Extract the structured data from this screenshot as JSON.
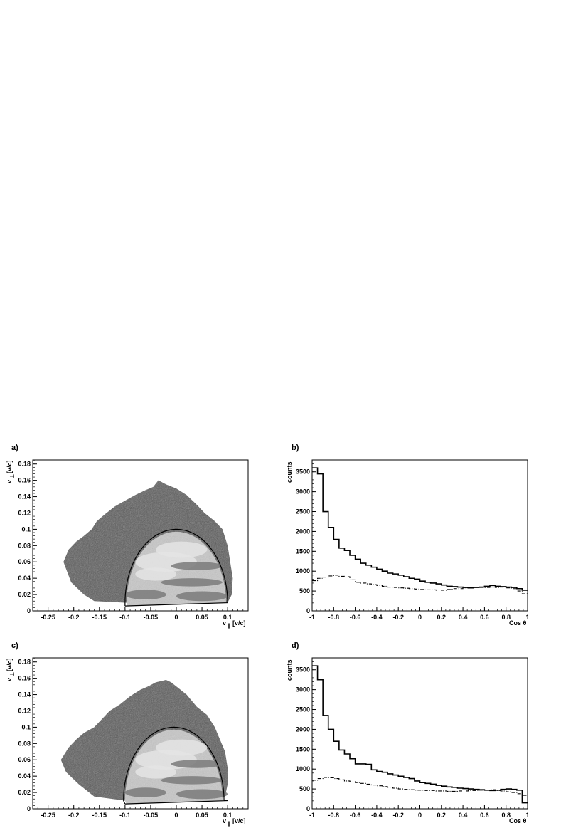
{
  "colors": {
    "frame": "#000000",
    "outer_region": "#5a5a5a",
    "inner_region": "#c8c8c8",
    "inner_bright": "#e4e4e4",
    "inner_dark": "#7a7a7a"
  },
  "chart_data": [
    {
      "panel": "a)",
      "type": "heatmap",
      "xlabel_main": "v",
      "xlabel_sub": "∥",
      "xlabel_unit": "[v/c]",
      "ylabel_main": "v",
      "ylabel_sub": "⊥",
      "ylabel_unit": "[v/c]",
      "xlim": [
        -0.28,
        0.14
      ],
      "ylim": [
        0,
        0.185
      ],
      "xticks": [
        "-0.25",
        "-0.2",
        "-0.15",
        "-0.1",
        "-0.05",
        "0",
        "0.05",
        "0.1"
      ],
      "xtick_values": [
        -0.25,
        -0.2,
        -0.15,
        -0.1,
        -0.05,
        0,
        0.05,
        0.1
      ],
      "yticks": [
        "0",
        "0.02",
        "0.04",
        "0.06",
        "0.08",
        "0.1",
        "0.12",
        "0.14",
        "0.16",
        "0.18"
      ],
      "ytick_values": [
        0,
        0.02,
        0.04,
        0.06,
        0.08,
        0.1,
        0.12,
        0.14,
        0.16,
        0.18
      ],
      "outer_boundary": [
        [
          -0.18,
          0.02
        ],
        [
          -0.205,
          0.035
        ],
        [
          -0.22,
          0.06
        ],
        [
          -0.21,
          0.075
        ],
        [
          -0.195,
          0.085
        ],
        [
          -0.18,
          0.092
        ],
        [
          -0.165,
          0.1
        ],
        [
          -0.155,
          0.11
        ],
        [
          -0.14,
          0.118
        ],
        [
          -0.12,
          0.128
        ],
        [
          -0.1,
          0.135
        ],
        [
          -0.08,
          0.142
        ],
        [
          -0.06,
          0.148
        ],
        [
          -0.045,
          0.152
        ],
        [
          -0.035,
          0.16
        ],
        [
          -0.02,
          0.155
        ],
        [
          0.0,
          0.15
        ],
        [
          0.02,
          0.142
        ],
        [
          0.04,
          0.13
        ],
        [
          0.055,
          0.12
        ],
        [
          0.075,
          0.11
        ],
        [
          0.09,
          0.1
        ],
        [
          0.1,
          0.08
        ],
        [
          0.105,
          0.06
        ],
        [
          0.11,
          0.04
        ],
        [
          0.108,
          0.02
        ],
        [
          0.1,
          0.01
        ],
        [
          0.0,
          0.008
        ],
        [
          -0.1,
          0.01
        ],
        [
          -0.16,
          0.012
        ]
      ],
      "gate_contour": {
        "arc_center": [
          0.0,
          0.01
        ],
        "arc_radius_x": 0.1,
        "arc_radius_y": 0.09,
        "bottom_left": [
          -0.1,
          0.006
        ],
        "bottom_right": [
          0.1,
          0.01
        ]
      }
    },
    {
      "panel": "b)",
      "type": "line",
      "ylabel": "counts",
      "xlabel": "Cos θ",
      "xlim": [
        -1,
        1
      ],
      "ylim": [
        0,
        3800
      ],
      "xticks": [
        "-1",
        "-0.8",
        "-0.6",
        "-0.4",
        "-0.2",
        "0",
        "0.2",
        "0.4",
        "0.6",
        "0.8",
        "1"
      ],
      "xtick_values": [
        -1,
        -0.8,
        -0.6,
        -0.4,
        -0.2,
        0,
        0.2,
        0.4,
        0.6,
        0.8,
        1
      ],
      "yticks": [
        "0",
        "500",
        "1000",
        "1500",
        "2000",
        "2500",
        "3000",
        "3500"
      ],
      "ytick_values": [
        0,
        500,
        1000,
        1500,
        2000,
        2500,
        3000,
        3500
      ],
      "bin_edges_start": -1,
      "bin_width": 0.05,
      "series": [
        {
          "style": "solid",
          "values": [
            3600,
            3450,
            2500,
            2100,
            1800,
            1580,
            1520,
            1400,
            1300,
            1200,
            1150,
            1100,
            1050,
            1000,
            950,
            930,
            900,
            860,
            820,
            800,
            750,
            720,
            700,
            680,
            650,
            620,
            610,
            600,
            590,
            580,
            590,
            600,
            620,
            640,
            620,
            610,
            600,
            590,
            560,
            520
          ]
        },
        {
          "style": "dash-dot",
          "values": [
            760,
            820,
            850,
            880,
            900,
            870,
            860,
            780,
            720,
            700,
            680,
            660,
            640,
            620,
            600,
            590,
            580,
            570,
            560,
            550,
            540,
            530,
            530,
            520,
            520,
            540,
            560,
            560,
            580,
            580,
            600,
            590,
            590,
            600,
            590,
            600,
            580,
            560,
            500,
            430
          ]
        }
      ]
    },
    {
      "panel": "c)",
      "type": "heatmap",
      "xlabel_main": "v",
      "xlabel_sub": "∥",
      "xlabel_unit": "[v/c]",
      "ylabel_main": "v",
      "ylabel_sub": "⊥",
      "ylabel_unit": "[v/c]",
      "xlim": [
        -0.28,
        0.14
      ],
      "ylim": [
        0,
        0.185
      ],
      "xticks": [
        "-0.25",
        "-0.2",
        "-0.15",
        "-0.1",
        "-0.05",
        "0",
        "0.05",
        "0.1"
      ],
      "xtick_values": [
        -0.25,
        -0.2,
        -0.15,
        -0.1,
        -0.05,
        0,
        0.05,
        0.1
      ],
      "yticks": [
        "0",
        "0.02",
        "0.04",
        "0.06",
        "0.08",
        "0.1",
        "0.12",
        "0.14",
        "0.16",
        "0.18"
      ],
      "ytick_values": [
        0,
        0.02,
        0.04,
        0.06,
        0.08,
        0.1,
        0.12,
        0.14,
        0.16,
        0.18
      ],
      "outer_boundary": [
        [
          -0.19,
          0.03
        ],
        [
          -0.215,
          0.045
        ],
        [
          -0.225,
          0.06
        ],
        [
          -0.21,
          0.075
        ],
        [
          -0.195,
          0.085
        ],
        [
          -0.18,
          0.093
        ],
        [
          -0.16,
          0.1
        ],
        [
          -0.145,
          0.11
        ],
        [
          -0.13,
          0.12
        ],
        [
          -0.11,
          0.128
        ],
        [
          -0.09,
          0.138
        ],
        [
          -0.07,
          0.146
        ],
        [
          -0.055,
          0.15
        ],
        [
          -0.04,
          0.155
        ],
        [
          -0.02,
          0.158
        ],
        [
          -0.01,
          0.155
        ],
        [
          0.0,
          0.15
        ],
        [
          0.02,
          0.14
        ],
        [
          0.04,
          0.125
        ],
        [
          0.06,
          0.115
        ],
        [
          0.075,
          0.1
        ],
        [
          0.085,
          0.085
        ],
        [
          0.095,
          0.07
        ],
        [
          0.1,
          0.05
        ],
        [
          0.1,
          0.03
        ],
        [
          0.095,
          0.015
        ],
        [
          0.08,
          0.01
        ],
        [
          0.0,
          0.008
        ],
        [
          -0.1,
          0.01
        ],
        [
          -0.16,
          0.015
        ]
      ],
      "gate_contour": {
        "arc_center": [
          -0.005,
          0.01
        ],
        "arc_radius_x": 0.098,
        "arc_radius_y": 0.09,
        "bottom_left": [
          -0.1,
          0.006
        ],
        "bottom_right": [
          0.1,
          0.01
        ]
      }
    },
    {
      "panel": "d)",
      "type": "line",
      "ylabel": "counts",
      "xlabel": "Cos θ",
      "xlim": [
        -1,
        1
      ],
      "ylim": [
        0,
        3800
      ],
      "xticks": [
        "-1",
        "-0.8",
        "-0.6",
        "-0.4",
        "-0.2",
        "0",
        "0.2",
        "0.4",
        "0.6",
        "0.8",
        "1"
      ],
      "xtick_values": [
        -1,
        -0.8,
        -0.6,
        -0.4,
        -0.2,
        0,
        0.2,
        0.4,
        0.6,
        0.8,
        1
      ],
      "yticks": [
        "0",
        "500",
        "1000",
        "1500",
        "2000",
        "2500",
        "3000",
        "3500"
      ],
      "ytick_values": [
        0,
        500,
        1000,
        1500,
        2000,
        2500,
        3000,
        3500
      ],
      "bin_edges_start": -1,
      "bin_width": 0.05,
      "series": [
        {
          "style": "solid",
          "values": [
            3600,
            3250,
            2350,
            2000,
            1700,
            1480,
            1380,
            1260,
            1130,
            1130,
            1120,
            980,
            940,
            920,
            880,
            850,
            820,
            790,
            760,
            700,
            660,
            640,
            620,
            590,
            570,
            550,
            540,
            520,
            510,
            500,
            490,
            480,
            470,
            460,
            470,
            490,
            500,
            490,
            470,
            150
          ]
        },
        {
          "style": "dash-dot",
          "values": [
            720,
            760,
            790,
            780,
            760,
            730,
            700,
            680,
            660,
            640,
            620,
            600,
            580,
            560,
            540,
            520,
            500,
            490,
            480,
            470,
            470,
            460,
            460,
            450,
            450,
            440,
            440,
            450,
            450,
            460,
            460,
            470,
            470,
            480,
            460,
            450,
            430,
            410,
            380,
            340
          ]
        }
      ]
    }
  ]
}
